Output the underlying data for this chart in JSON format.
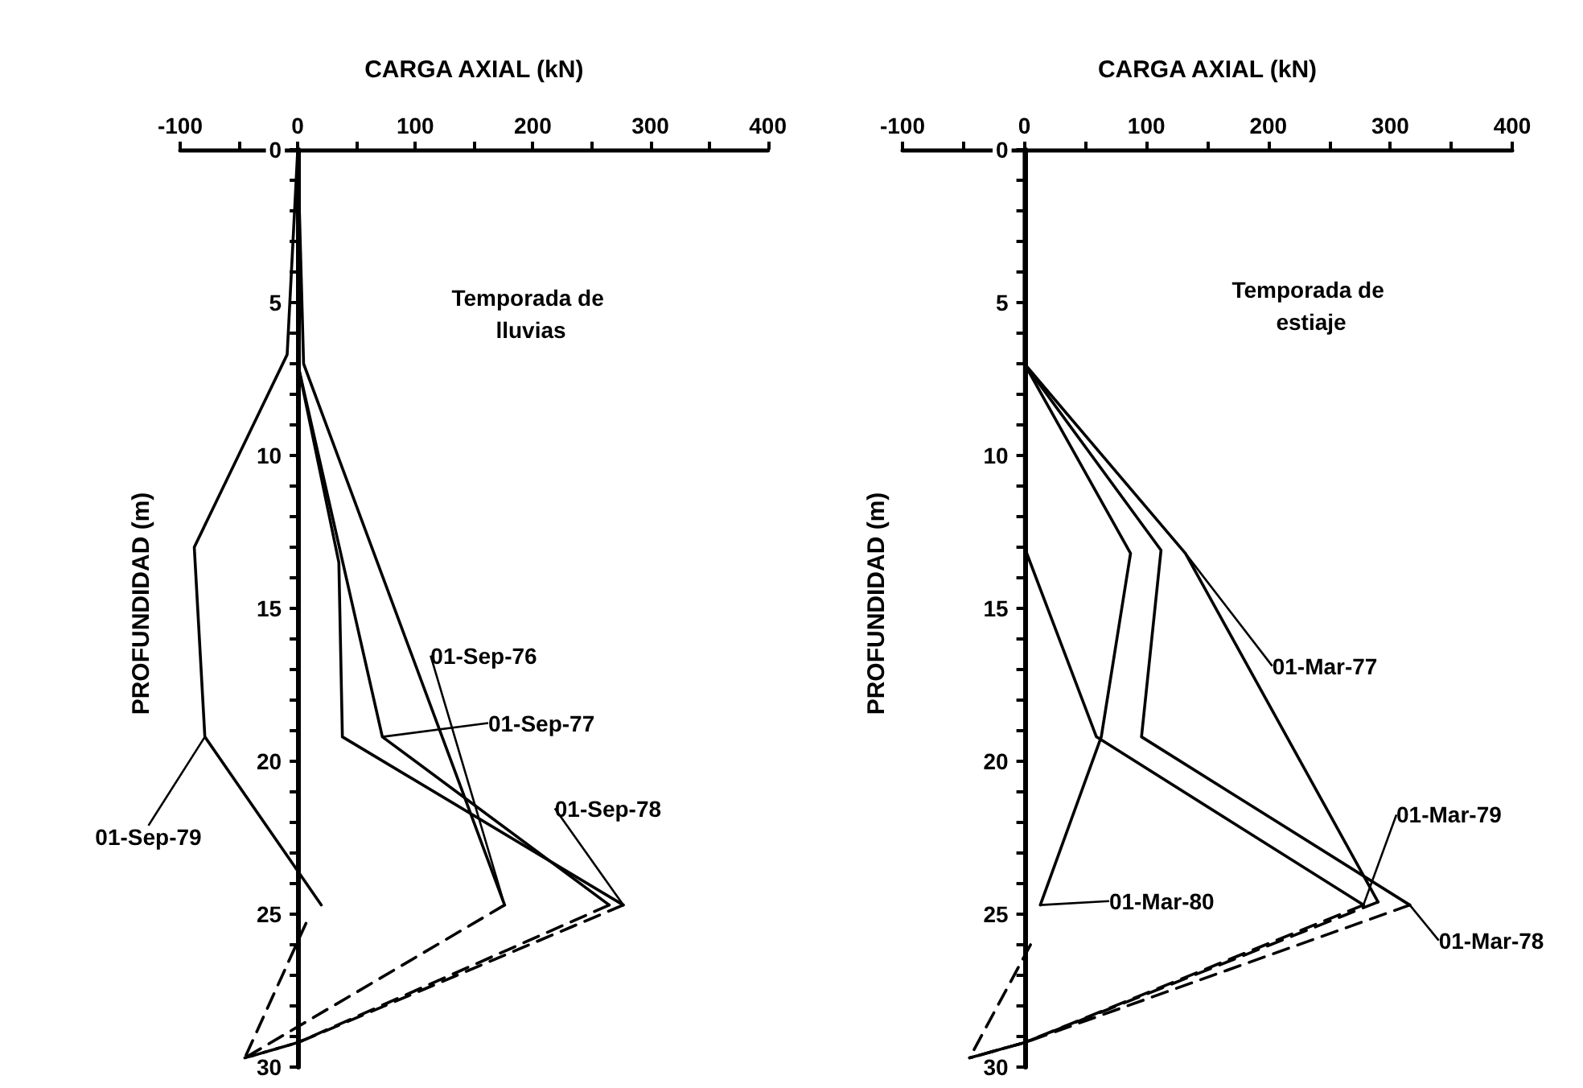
{
  "chart_data": [
    {
      "type": "line",
      "xlabel": "CARGA AXIAL (kN)",
      "ylabel": "PROFUNDIDAD (m)",
      "annotations": [
        "Temporada de lluvias"
      ],
      "marker": "none",
      "xlim": [
        -100,
        400
      ],
      "xticks": [
        -100,
        {
          "value": -50,
          "label": null
        },
        0,
        {
          "value": 50,
          "label": null
        },
        100,
        {
          "value": 150,
          "label": null
        },
        200,
        {
          "value": 250,
          "label": null
        },
        300,
        {
          "value": 350,
          "label": null
        },
        400
      ],
      "ylim": [
        30,
        0
      ],
      "yticks": [
        0,
        {
          "value": 1,
          "label": null
        },
        {
          "value": 2,
          "label": null
        },
        {
          "value": 3,
          "label": null
        },
        {
          "value": 4,
          "label": null
        },
        5,
        {
          "value": 6,
          "label": null
        },
        {
          "value": 7,
          "label": null
        },
        {
          "value": 8,
          "label": null
        },
        {
          "value": 9,
          "label": null
        },
        10,
        {
          "value": 11,
          "label": null
        },
        {
          "value": 12,
          "label": null
        },
        {
          "value": 13,
          "label": null
        },
        {
          "value": 14,
          "label": null
        },
        15,
        {
          "value": 16,
          "label": null
        },
        {
          "value": 17,
          "label": null
        },
        {
          "value": 18,
          "label": null
        },
        {
          "value": 19,
          "label": null
        },
        20,
        {
          "value": 21,
          "label": null
        },
        {
          "value": 22,
          "label": null
        },
        {
          "value": 23,
          "label": null
        },
        {
          "value": 24,
          "label": null
        },
        25,
        {
          "value": 26,
          "label": null
        },
        {
          "value": 27,
          "label": null
        },
        {
          "value": 28,
          "label": null
        },
        {
          "value": 29,
          "label": null
        },
        30
      ],
      "series": [
        {
          "name": "01-Sep-76",
          "color": "#000000",
          "line_style": "solid",
          "x": [
            0,
            5,
            176
          ],
          "values": [
            0,
            7,
            24.7
          ]
        },
        {
          "name": "01-Sep-77",
          "color": "#000000",
          "line_style": "solid",
          "x": [
            0,
            0,
            72,
            265
          ],
          "values": [
            0,
            7,
            19.2,
            24.7
          ]
        },
        {
          "name": "01-Sep-78",
          "color": "#000000",
          "line_style": "solid",
          "x": [
            0,
            0,
            35,
            38,
            277
          ],
          "values": [
            0,
            7,
            13.5,
            19.2,
            24.7
          ]
        },
        {
          "name": "01-Sep-79",
          "color": "#000000",
          "line_style": "solid",
          "x": [
            0,
            -9,
            -88,
            -79,
            20
          ],
          "values": [
            0,
            6.7,
            13,
            19.2,
            24.7
          ]
        },
        {
          "color": "#000000",
          "line_style": "dashed",
          "x": [
            176,
            -45
          ],
          "values": [
            24.7,
            29.7
          ]
        },
        {
          "color": "#000000",
          "line_style": "dashed",
          "x": [
            265,
            0,
            -45
          ],
          "values": [
            24.7,
            29.2,
            29.7
          ]
        },
        {
          "color": "#000000",
          "line_style": "dashed",
          "x": [
            277,
            0,
            -45
          ],
          "values": [
            24.7,
            29.2,
            29.7
          ]
        },
        {
          "color": "#000000",
          "line_style": "dashed",
          "x": [
            7,
            -45
          ],
          "values": [
            25.3,
            29.7
          ]
        }
      ]
    },
    {
      "type": "line",
      "xlabel": "CARGA AXIAL (kN)",
      "ylabel": "PROFUNDIDAD (m)",
      "annotations": [
        "Temporada de estiaje"
      ],
      "marker": "none",
      "xlim": [
        -100,
        400
      ],
      "xticks": [
        -100,
        {
          "value": -50,
          "label": null
        },
        0,
        {
          "value": 50,
          "label": null
        },
        100,
        {
          "value": 150,
          "label": null
        },
        200,
        {
          "value": 250,
          "label": null
        },
        300,
        {
          "value": 350,
          "label": null
        },
        400
      ],
      "ylim": [
        30,
        0
      ],
      "yticks": [
        0,
        {
          "value": 1,
          "label": null
        },
        {
          "value": 2,
          "label": null
        },
        {
          "value": 3,
          "label": null
        },
        {
          "value": 4,
          "label": null
        },
        5,
        {
          "value": 6,
          "label": null
        },
        {
          "value": 7,
          "label": null
        },
        {
          "value": 8,
          "label": null
        },
        {
          "value": 9,
          "label": null
        },
        10,
        {
          "value": 11,
          "label": null
        },
        {
          "value": 12,
          "label": null
        },
        {
          "value": 13,
          "label": null
        },
        {
          "value": 14,
          "label": null
        },
        15,
        {
          "value": 16,
          "label": null
        },
        {
          "value": 17,
          "label": null
        },
        {
          "value": 18,
          "label": null
        },
        {
          "value": 19,
          "label": null
        },
        20,
        {
          "value": 21,
          "label": null
        },
        {
          "value": 22,
          "label": null
        },
        {
          "value": 23,
          "label": null
        },
        {
          "value": 24,
          "label": null
        },
        25,
        {
          "value": 26,
          "label": null
        },
        {
          "value": 27,
          "label": null
        },
        {
          "value": 28,
          "label": null
        },
        {
          "value": 29,
          "label": null
        },
        30
      ],
      "series": [
        {
          "name": "01-Mar-77",
          "color": "#000000",
          "line_style": "solid",
          "x": [
            0,
            0,
            132,
            290
          ],
          "values": [
            0,
            7,
            13.2,
            24.6
          ]
        },
        {
          "name": "01-Mar-78",
          "color": "#000000",
          "line_style": "solid",
          "x": [
            0,
            0,
            112,
            96,
            316
          ],
          "values": [
            0,
            7,
            13.1,
            19.2,
            24.7
          ]
        },
        {
          "name": "01-Mar-79",
          "color": "#000000",
          "line_style": "solid",
          "x": [
            0,
            0,
            59,
            278
          ],
          "values": [
            0,
            13,
            19.2,
            24.7
          ]
        },
        {
          "name": "01-Mar-80",
          "color": "#000000",
          "line_style": "solid",
          "x": [
            0,
            0,
            87,
            63,
            13
          ],
          "values": [
            0,
            7,
            13.2,
            19.2,
            24.7
          ]
        },
        {
          "color": "#000000",
          "line_style": "dashed",
          "x": [
            290,
            0,
            -45
          ],
          "values": [
            24.6,
            29.2,
            29.7
          ]
        },
        {
          "color": "#000000",
          "line_style": "dashed",
          "x": [
            316,
            0,
            -45
          ],
          "values": [
            24.7,
            29.2,
            29.7
          ]
        },
        {
          "color": "#000000",
          "line_style": "dashed",
          "x": [
            278,
            0,
            -45
          ],
          "values": [
            24.7,
            29.2,
            29.7
          ]
        },
        {
          "color": "#000000",
          "line_style": "dashed",
          "x": [
            5,
            -45
          ],
          "values": [
            26,
            29.7
          ]
        }
      ]
    }
  ]
}
